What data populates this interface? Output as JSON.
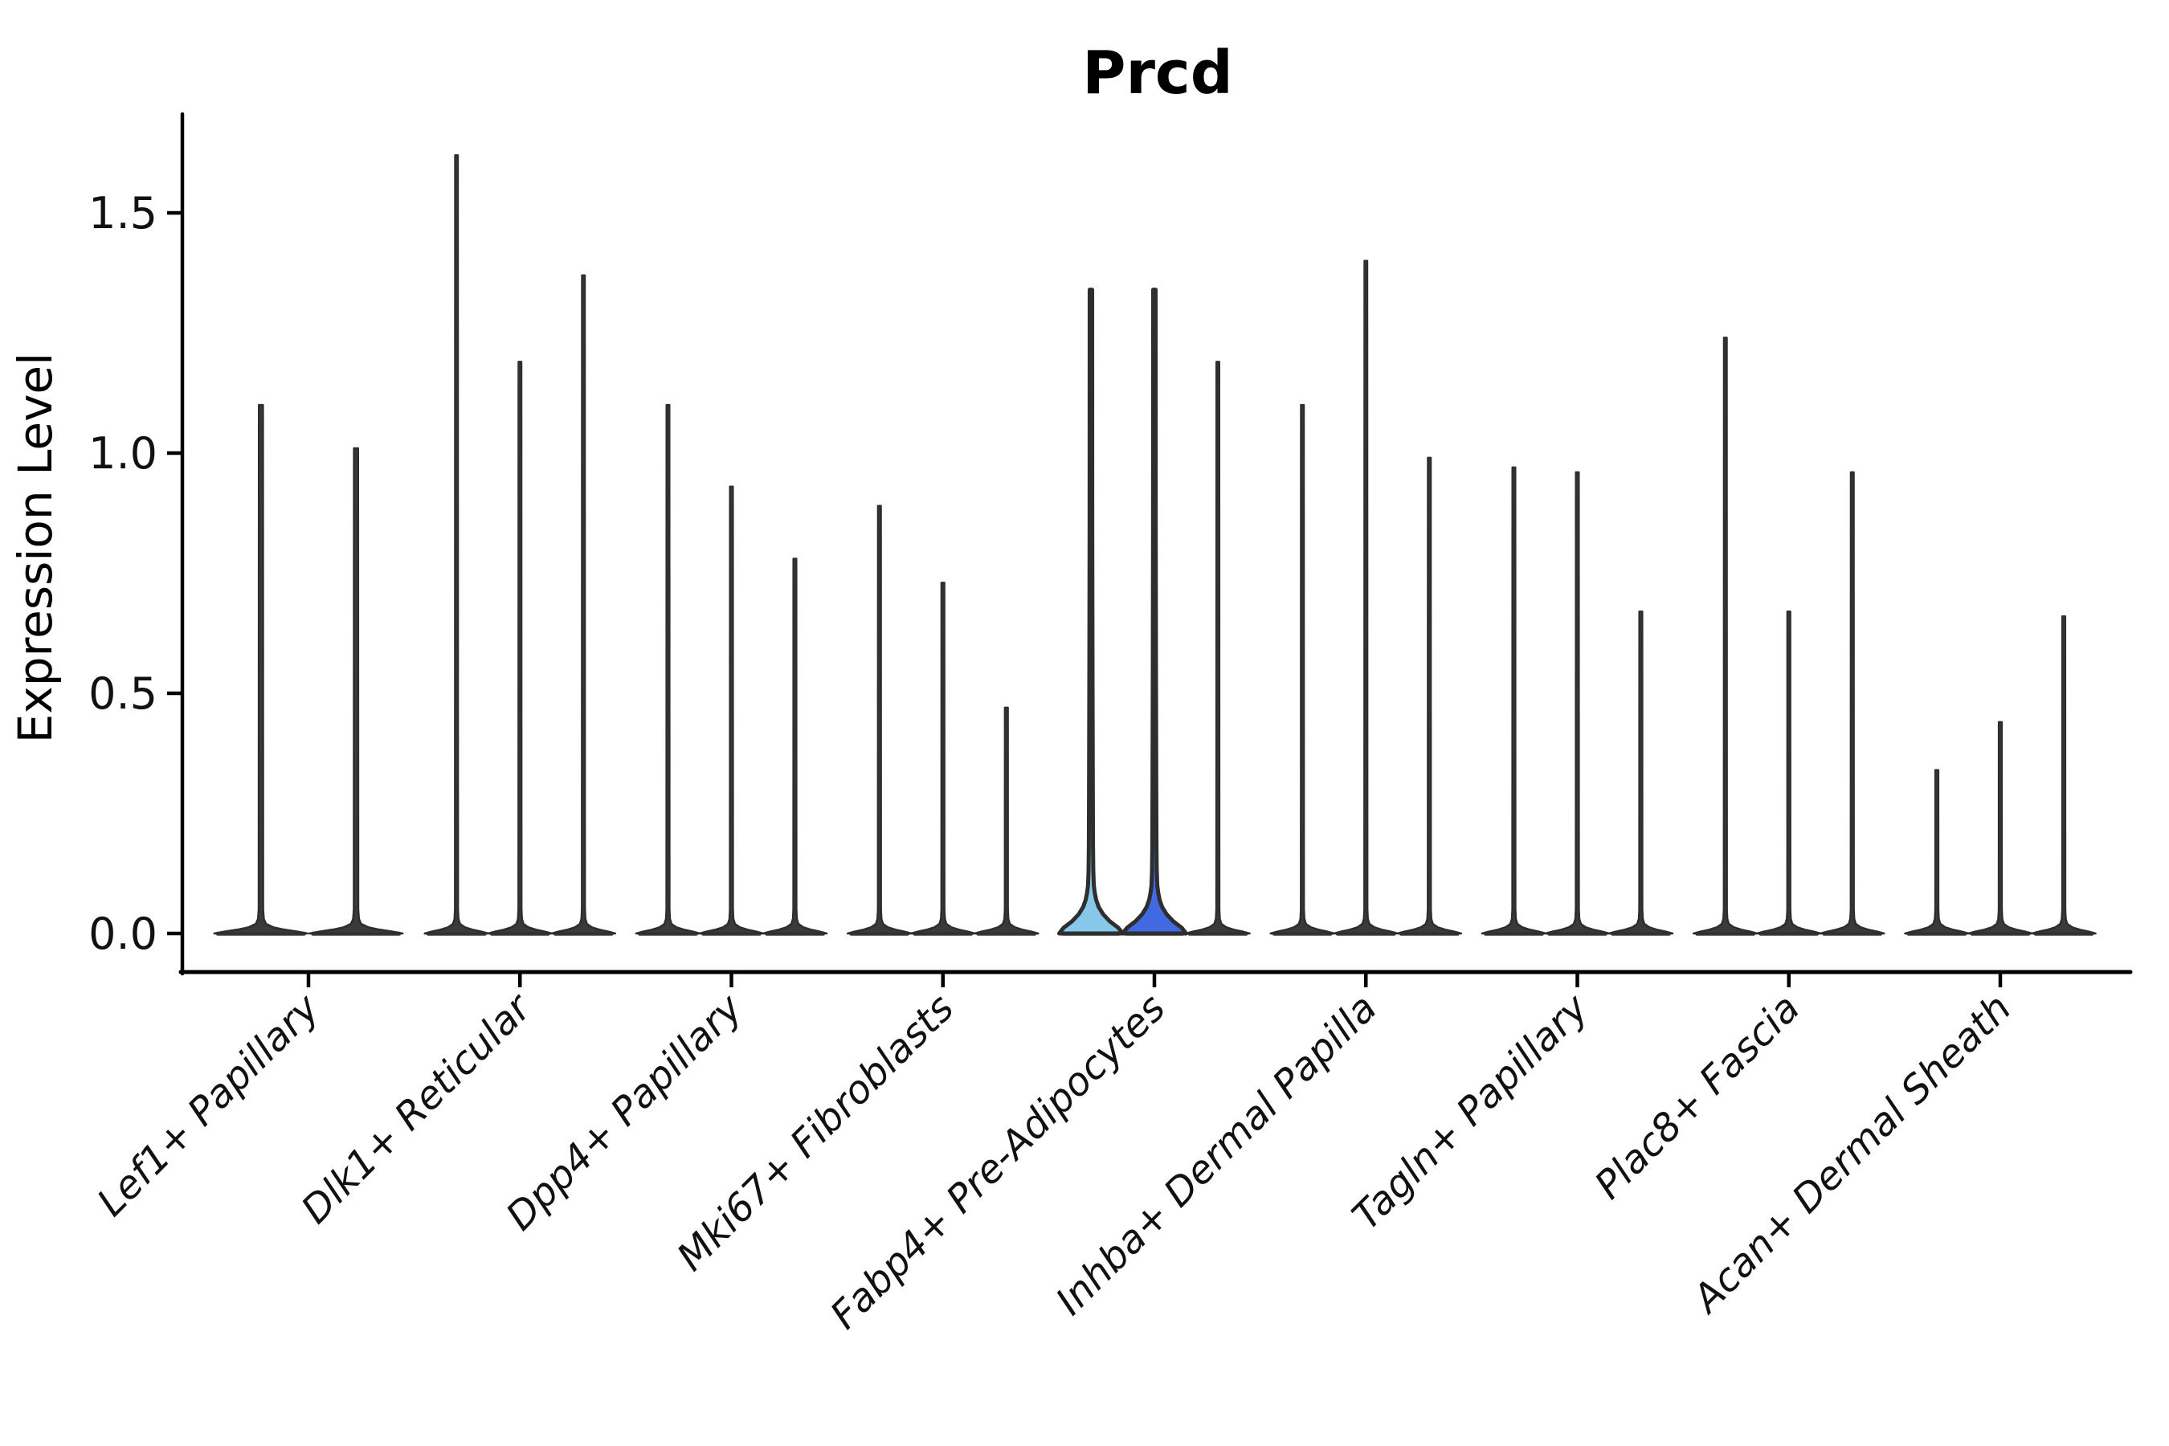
{
  "chart_data": {
    "type": "violin",
    "title": "Prcd",
    "ylabel": "Expression Level",
    "xlabel": "",
    "yticks": [
      0.0,
      0.5,
      1.0,
      1.5
    ],
    "ylim": [
      0,
      1.71
    ],
    "grid": false,
    "legend": "none",
    "categories": [
      "Lef1+ Papillary",
      "Dlk1+ Reticular",
      "Dpp4+ Papillary",
      "Mki67+ Fibroblasts",
      "Fabp4+ Pre-Adipocytes",
      "Inhba+ Dermal Papilla",
      "Tagln+ Papillary",
      "Plac8+ Fascia",
      "Acan+ Dermal Sheath"
    ],
    "groups": [
      {
        "category": "Lef1+ Papillary",
        "violins": [
          {
            "max": 1.1
          },
          {
            "max": 1.01
          }
        ]
      },
      {
        "category": "Dlk1+ Reticular",
        "violins": [
          {
            "max": 1.62
          },
          {
            "max": 1.19
          },
          {
            "max": 1.37
          }
        ]
      },
      {
        "category": "Dpp4+ Papillary",
        "violins": [
          {
            "max": 1.1
          },
          {
            "max": 0.93
          },
          {
            "max": 0.78
          }
        ]
      },
      {
        "category": "Mki67+ Fibroblasts",
        "violins": [
          {
            "max": 0.89
          },
          {
            "max": 0.73
          },
          {
            "max": 0.47
          }
        ]
      },
      {
        "category": "Fabp4+ Pre-Adipocytes",
        "violins": [
          {
            "max": 1.34,
            "fill": "#87C7EA"
          },
          {
            "max": 1.34,
            "fill": "#4169E1"
          },
          {
            "max": 1.19
          }
        ]
      },
      {
        "category": "Inhba+ Dermal Papilla",
        "violins": [
          {
            "max": 1.1
          },
          {
            "max": 1.4
          },
          {
            "max": 0.99
          }
        ]
      },
      {
        "category": "Tagln+ Papillary",
        "violins": [
          {
            "max": 0.97
          },
          {
            "max": 0.96
          },
          {
            "max": 0.67
          }
        ]
      },
      {
        "category": "Plac8+ Fascia",
        "violins": [
          {
            "max": 1.24
          },
          {
            "max": 0.67
          },
          {
            "max": 0.96
          }
        ]
      },
      {
        "category": "Acan+ Dermal Sheath",
        "violins": [
          {
            "max": 0.34
          },
          {
            "max": 0.44
          },
          {
            "max": 0.66
          }
        ]
      }
    ],
    "colors": {
      "highlight_light_blue": "#87C7EA",
      "highlight_royal_blue": "#4169E1",
      "violin_dark": "#3a3a3a",
      "violin_outline": "#2e2e2e",
      "axis": "#000000"
    }
  }
}
